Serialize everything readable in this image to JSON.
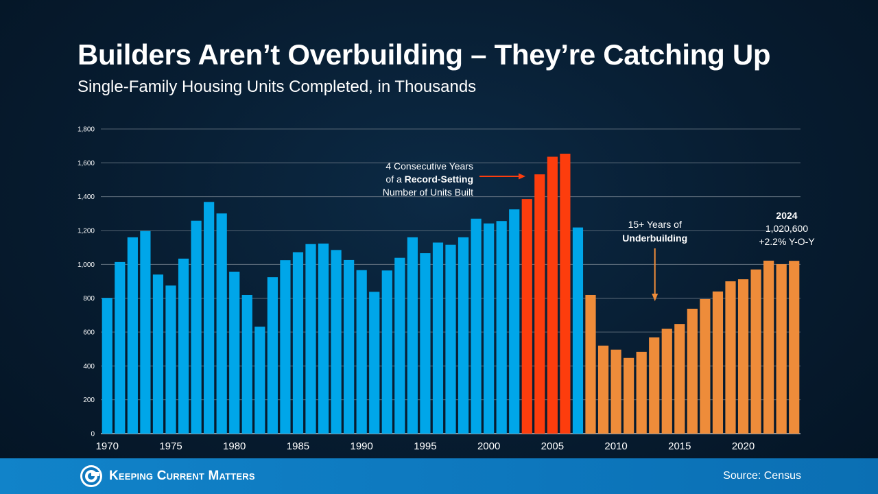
{
  "title": "Builders Aren’t Overbuilding – They’re Catching Up",
  "subtitle": "Single-Family Housing Units Completed, in Thousands",
  "chart_data": {
    "type": "bar",
    "categories": [
      1970,
      1971,
      1972,
      1973,
      1974,
      1975,
      1976,
      1977,
      1978,
      1979,
      1980,
      1981,
      1982,
      1983,
      1984,
      1985,
      1986,
      1987,
      1988,
      1989,
      1990,
      1991,
      1992,
      1993,
      1994,
      1995,
      1996,
      1997,
      1998,
      1999,
      2000,
      2001,
      2002,
      2003,
      2004,
      2005,
      2006,
      2007,
      2008,
      2009,
      2010,
      2011,
      2012,
      2013,
      2014,
      2015,
      2016,
      2017,
      2018,
      2019,
      2020,
      2021,
      2022,
      2023,
      2024
    ],
    "values": [
      802,
      1014,
      1160,
      1197,
      940,
      875,
      1034,
      1258,
      1369,
      1301,
      957,
      819,
      632,
      924,
      1025,
      1072,
      1120,
      1123,
      1085,
      1026,
      966,
      838,
      964,
      1039,
      1160,
      1066,
      1129,
      1116,
      1160,
      1270,
      1242,
      1256,
      1325,
      1386,
      1532,
      1636,
      1654,
      1218,
      819,
      520,
      496,
      447,
      483,
      569,
      620,
      648,
      738,
      795,
      840,
      900,
      912,
      970,
      1022,
      1001,
      1021
    ],
    "colors": [
      "#00a6e9",
      "#00a6e9",
      "#00a6e9",
      "#00a6e9",
      "#00a6e9",
      "#00a6e9",
      "#00a6e9",
      "#00a6e9",
      "#00a6e9",
      "#00a6e9",
      "#00a6e9",
      "#00a6e9",
      "#00a6e9",
      "#00a6e9",
      "#00a6e9",
      "#00a6e9",
      "#00a6e9",
      "#00a6e9",
      "#00a6e9",
      "#00a6e9",
      "#00a6e9",
      "#00a6e9",
      "#00a6e9",
      "#00a6e9",
      "#00a6e9",
      "#00a6e9",
      "#00a6e9",
      "#00a6e9",
      "#00a6e9",
      "#00a6e9",
      "#00a6e9",
      "#00a6e9",
      "#00a6e9",
      "#fd3d0d",
      "#fd3d0d",
      "#fd3d0d",
      "#fd3d0d",
      "#00a6e9",
      "#ee8c3a",
      "#ee8c3a",
      "#ee8c3a",
      "#ee8c3a",
      "#ee8c3a",
      "#ee8c3a",
      "#ee8c3a",
      "#ee8c3a",
      "#ee8c3a",
      "#ee8c3a",
      "#ee8c3a",
      "#ee8c3a",
      "#ee8c3a",
      "#ee8c3a",
      "#ee8c3a",
      "#ee8c3a",
      "#ee8c3a"
    ],
    "x_tick_labels": [
      "1970",
      "1975",
      "1980",
      "1985",
      "1990",
      "1995",
      "2000",
      "2005",
      "2010",
      "2015",
      "2020"
    ],
    "y_ticks": [
      0,
      200,
      400,
      600,
      800,
      1000,
      1200,
      1400,
      1600,
      1800
    ],
    "y_tick_labels": [
      "0",
      "200",
      "400",
      "600",
      "800",
      "1,000",
      "1,200",
      "1,400",
      "1,600",
      "1,800"
    ],
    "ylim": [
      0,
      1800
    ],
    "grid": true,
    "legend": "none",
    "annotations": {
      "record": {
        "line1": "4 Consecutive Years",
        "line2_pre": "of a ",
        "line2_bold": "Record-Setting",
        "line3": "Number of Units Built",
        "arrow_color": "#fd3d0d"
      },
      "under": {
        "line1": "15+ Years of",
        "line2_bold": "Underbuilding",
        "arrow_color": "#ee8c3a"
      },
      "latest": {
        "line1_bold": "2024",
        "line2": "1,020,600",
        "line3": "+2.2% Y-O-Y"
      }
    }
  },
  "footer": {
    "brand": "Keeping Current Matters",
    "source": "Source: Census",
    "bar_color": "#0d77bd"
  }
}
